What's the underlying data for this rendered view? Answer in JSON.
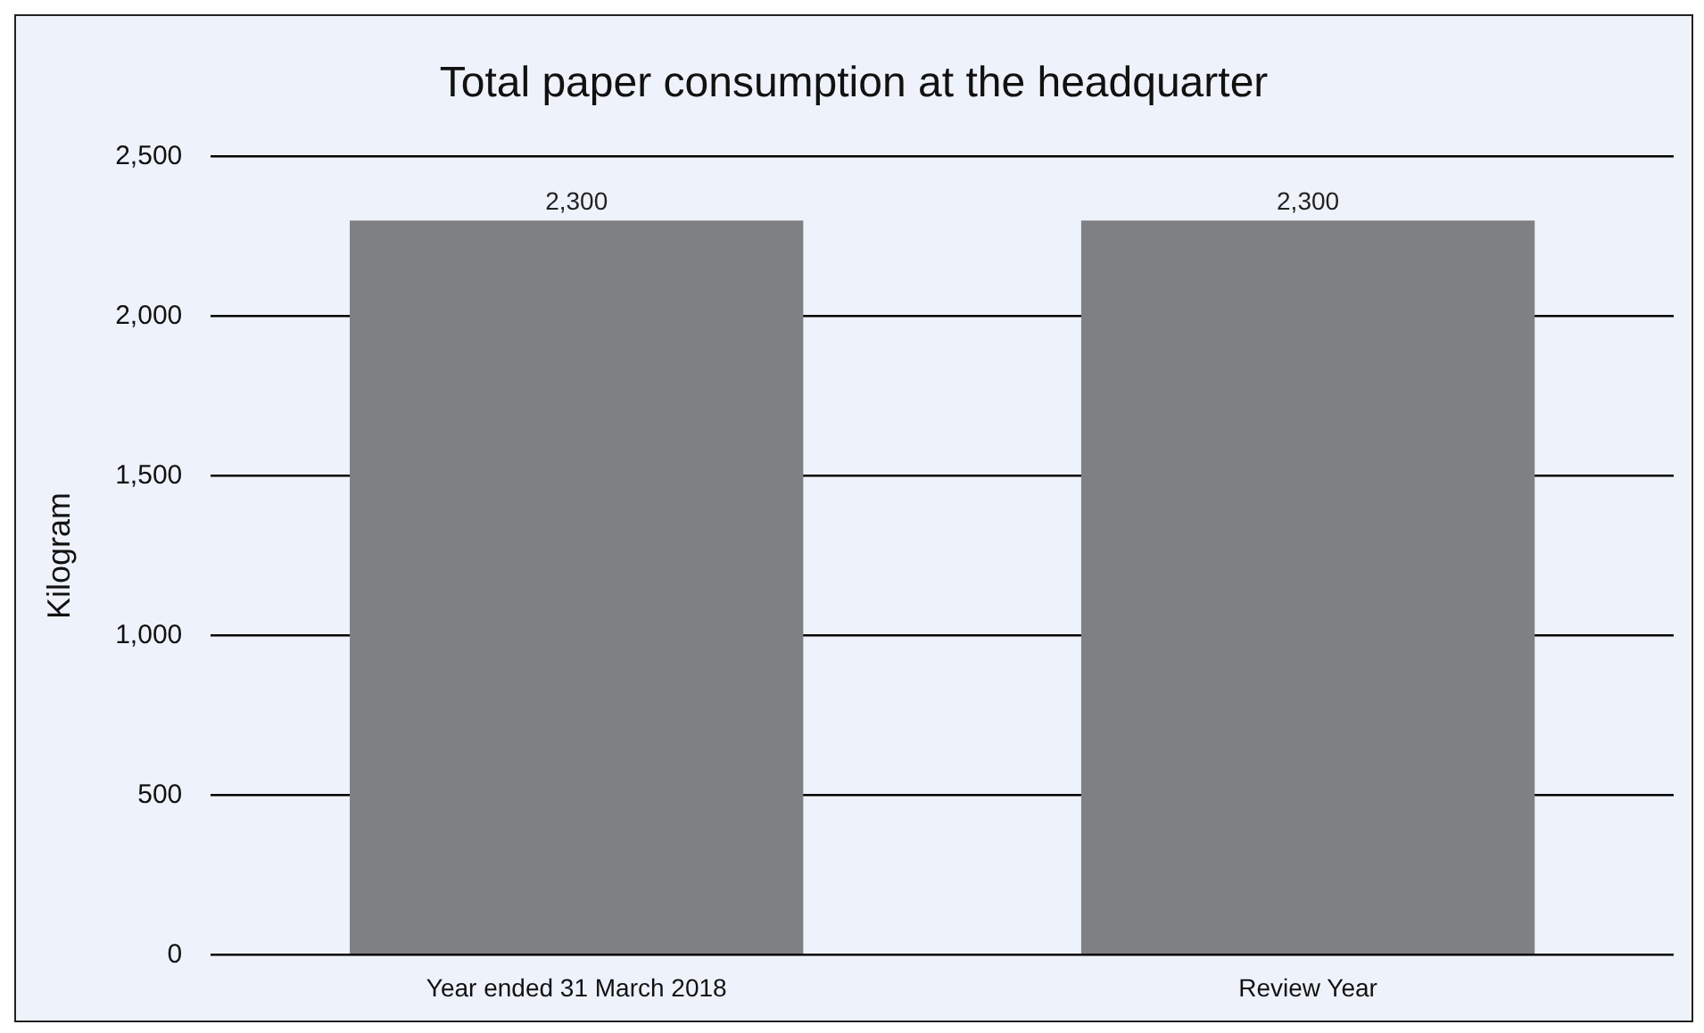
{
  "chart_data": {
    "type": "bar",
    "title": "Total paper consumption at the headquarter",
    "ylabel": "Kilogram",
    "categories": [
      "Year ended 31 March 2018",
      "Review Year"
    ],
    "values": [
      2300,
      2300
    ],
    "value_labels": [
      "2,300",
      "2,300"
    ],
    "color": "#7f8083",
    "ylim": [
      0,
      2500
    ],
    "yticks": [
      {
        "value": 0,
        "label": "0"
      },
      {
        "value": 500,
        "label": "500"
      },
      {
        "value": 1000,
        "label": "1,000"
      },
      {
        "value": 1500,
        "label": "1,500"
      },
      {
        "value": 2000,
        "label": "2,000"
      },
      {
        "value": 2500,
        "label": "2,500"
      }
    ],
    "grid": "y",
    "legend": false
  }
}
